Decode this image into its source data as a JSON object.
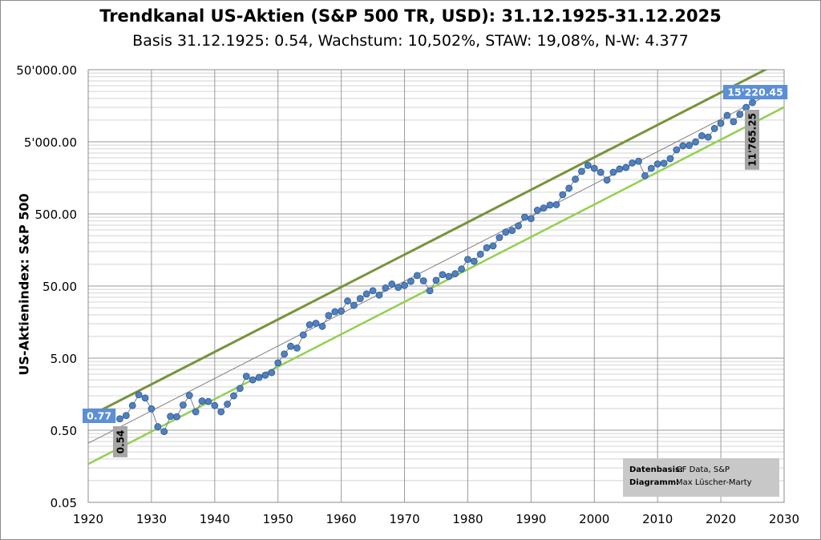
{
  "chart_data": {
    "type": "line",
    "title": "Trendkanal US-Aktien (S&P 500 TR, USD): 31.12.1925-31.12.2025",
    "subtitle": "Basis 31.12.1925: 0.54, Wachstum: 10,502%, STAW: 19,08%, N-W: 4.377",
    "ylabel": "US-Aktienindex: S&P 500",
    "xlabel": "",
    "y_scale": "log",
    "xlim": [
      1920,
      2030
    ],
    "ylim": [
      0.05,
      50000
    ],
    "x_ticks": [
      1920,
      1930,
      1940,
      1950,
      1960,
      1970,
      1980,
      1990,
      2000,
      2010,
      2020,
      2030
    ],
    "x_tick_labels": [
      "1920",
      "1930",
      "1940",
      "1950",
      "1960",
      "1970",
      "1980",
      "1990",
      "2000",
      "2010",
      "2020",
      "2030"
    ],
    "y_ticks": [
      0.05,
      0.5,
      5,
      50,
      500,
      5000,
      50000
    ],
    "y_tick_labels": [
      "0.05",
      "0.50",
      "5.00",
      "50.00",
      "500.00",
      "5'000.00",
      "50'000.00"
    ],
    "grid": true,
    "colors": {
      "series": "#4f81bd",
      "marker_edge": "#2f5597",
      "upper_band": "#77933c",
      "lower_band": "#92d050",
      "trend": "#7f7f7f",
      "label_blue": "#5b8fd6",
      "label_grey": "#a6a6a6"
    },
    "series": [
      {
        "name": "S&P 500 TR",
        "x": [
          1925,
          1926,
          1927,
          1928,
          1929,
          1930,
          1931,
          1932,
          1933,
          1934,
          1935,
          1936,
          1937,
          1938,
          1939,
          1940,
          1941,
          1942,
          1943,
          1944,
          1945,
          1946,
          1947,
          1948,
          1949,
          1950,
          1951,
          1952,
          1953,
          1954,
          1955,
          1956,
          1957,
          1958,
          1959,
          1960,
          1961,
          1962,
          1963,
          1964,
          1965,
          1966,
          1967,
          1968,
          1969,
          1970,
          1971,
          1972,
          1973,
          1974,
          1975,
          1976,
          1977,
          1978,
          1979,
          1980,
          1981,
          1982,
          1983,
          1984,
          1985,
          1986,
          1987,
          1988,
          1989,
          1990,
          1991,
          1992,
          1993,
          1994,
          1995,
          1996,
          1997,
          1998,
          1999,
          2000,
          2001,
          2002,
          2003,
          2004,
          2005,
          2006,
          2007,
          2008,
          2009,
          2010,
          2011,
          2012,
          2013,
          2014,
          2015,
          2016,
          2017,
          2018,
          2019,
          2020,
          2021,
          2022,
          2023,
          2024,
          2025
        ],
        "values": [
          0.72,
          0.8,
          1.1,
          1.55,
          1.4,
          0.99,
          0.56,
          0.48,
          0.78,
          0.77,
          1.12,
          1.52,
          0.9,
          1.27,
          1.25,
          1.1,
          0.9,
          1.15,
          1.5,
          1.9,
          2.8,
          2.5,
          2.7,
          2.9,
          3.15,
          4.3,
          5.7,
          7.3,
          6.9,
          10.5,
          14.5,
          15.2,
          13.8,
          19.5,
          22.0,
          22.5,
          31.0,
          27.0,
          33.5,
          38.8,
          43.0,
          37.5,
          47.0,
          53.2,
          48.0,
          51.0,
          58.0,
          70.0,
          59.0,
          43.0,
          60.0,
          72.0,
          68.0,
          74.0,
          86.0,
          117.0,
          110.0,
          138.0,
          170.0,
          180.0,
          235.0,
          280.0,
          294.0,
          342.0,
          451.0,
          430.0,
          562.0,
          604.0,
          665.0,
          672.0,
          924.0,
          1136.0,
          1514.0,
          1948.0,
          2357.0,
          2143.0,
          1888.0,
          1471.0,
          1893.0,
          2099.0,
          2201.0,
          2548.0,
          2690.0,
          1694.0,
          2143.0,
          2467.0,
          2519.0,
          2921.0,
          3868.0,
          4394.0,
          4454.0,
          4989.0,
          6078.0,
          5812.0,
          7643.0,
          9038.0,
          11617.0,
          9520.0,
          12023.0,
          15030.0,
          17500.0
        ]
      },
      {
        "name": "Trendkanal oben",
        "x": [
          1920,
          2030
        ],
        "values": [
          0.77,
          68000
        ]
      },
      {
        "name": "Trendkanal unten",
        "x": [
          1920,
          2030
        ],
        "values": [
          0.17,
          15100
        ]
      },
      {
        "name": "Trendlinie",
        "x": [
          1920,
          2030
        ],
        "values": [
          0.33,
          29000
        ]
      }
    ],
    "annotations": [
      {
        "text": "0.77",
        "x": 1920,
        "value": 0.77,
        "style": "blue"
      },
      {
        "text": "0.54",
        "x": 1925,
        "value": 0.54,
        "style": "grey-vertical"
      },
      {
        "text": "15'220.45",
        "x": 2025,
        "value": 15220.45,
        "style": "blue"
      },
      {
        "text": "11'765.25",
        "x": 2025,
        "value": 11765.25,
        "style": "grey-vertical"
      }
    ]
  },
  "source": {
    "data_label": "Datenbasis:",
    "data_value": "GF Data, S&P",
    "diagram_label": "Diagramm:",
    "diagram_value": "Max Lüscher-Marty"
  }
}
